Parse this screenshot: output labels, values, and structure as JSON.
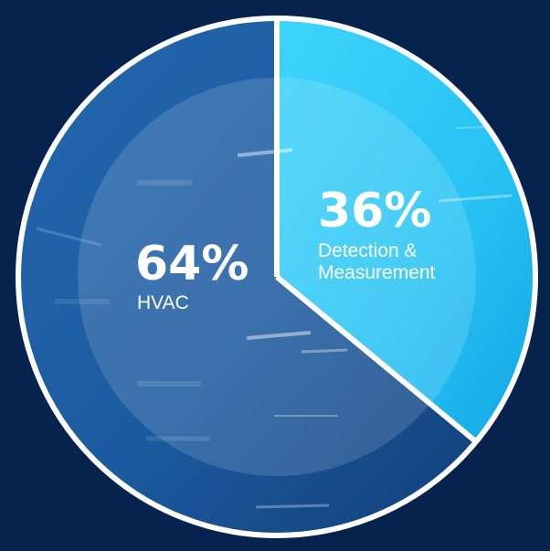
{
  "chart_data": {
    "type": "pie",
    "slices": [
      {
        "label_lines": [
          "HVAC"
        ],
        "value": 64,
        "display": "64%",
        "color": "#1b5a9e"
      },
      {
        "label_lines": [
          "Detection &",
          "Measurement"
        ],
        "value": 36,
        "display": "36%",
        "color": "#2bc8f4"
      }
    ]
  },
  "colors": {
    "background": "#06234d",
    "border": "#ffffff",
    "inner_overlay": "#ffffff"
  }
}
